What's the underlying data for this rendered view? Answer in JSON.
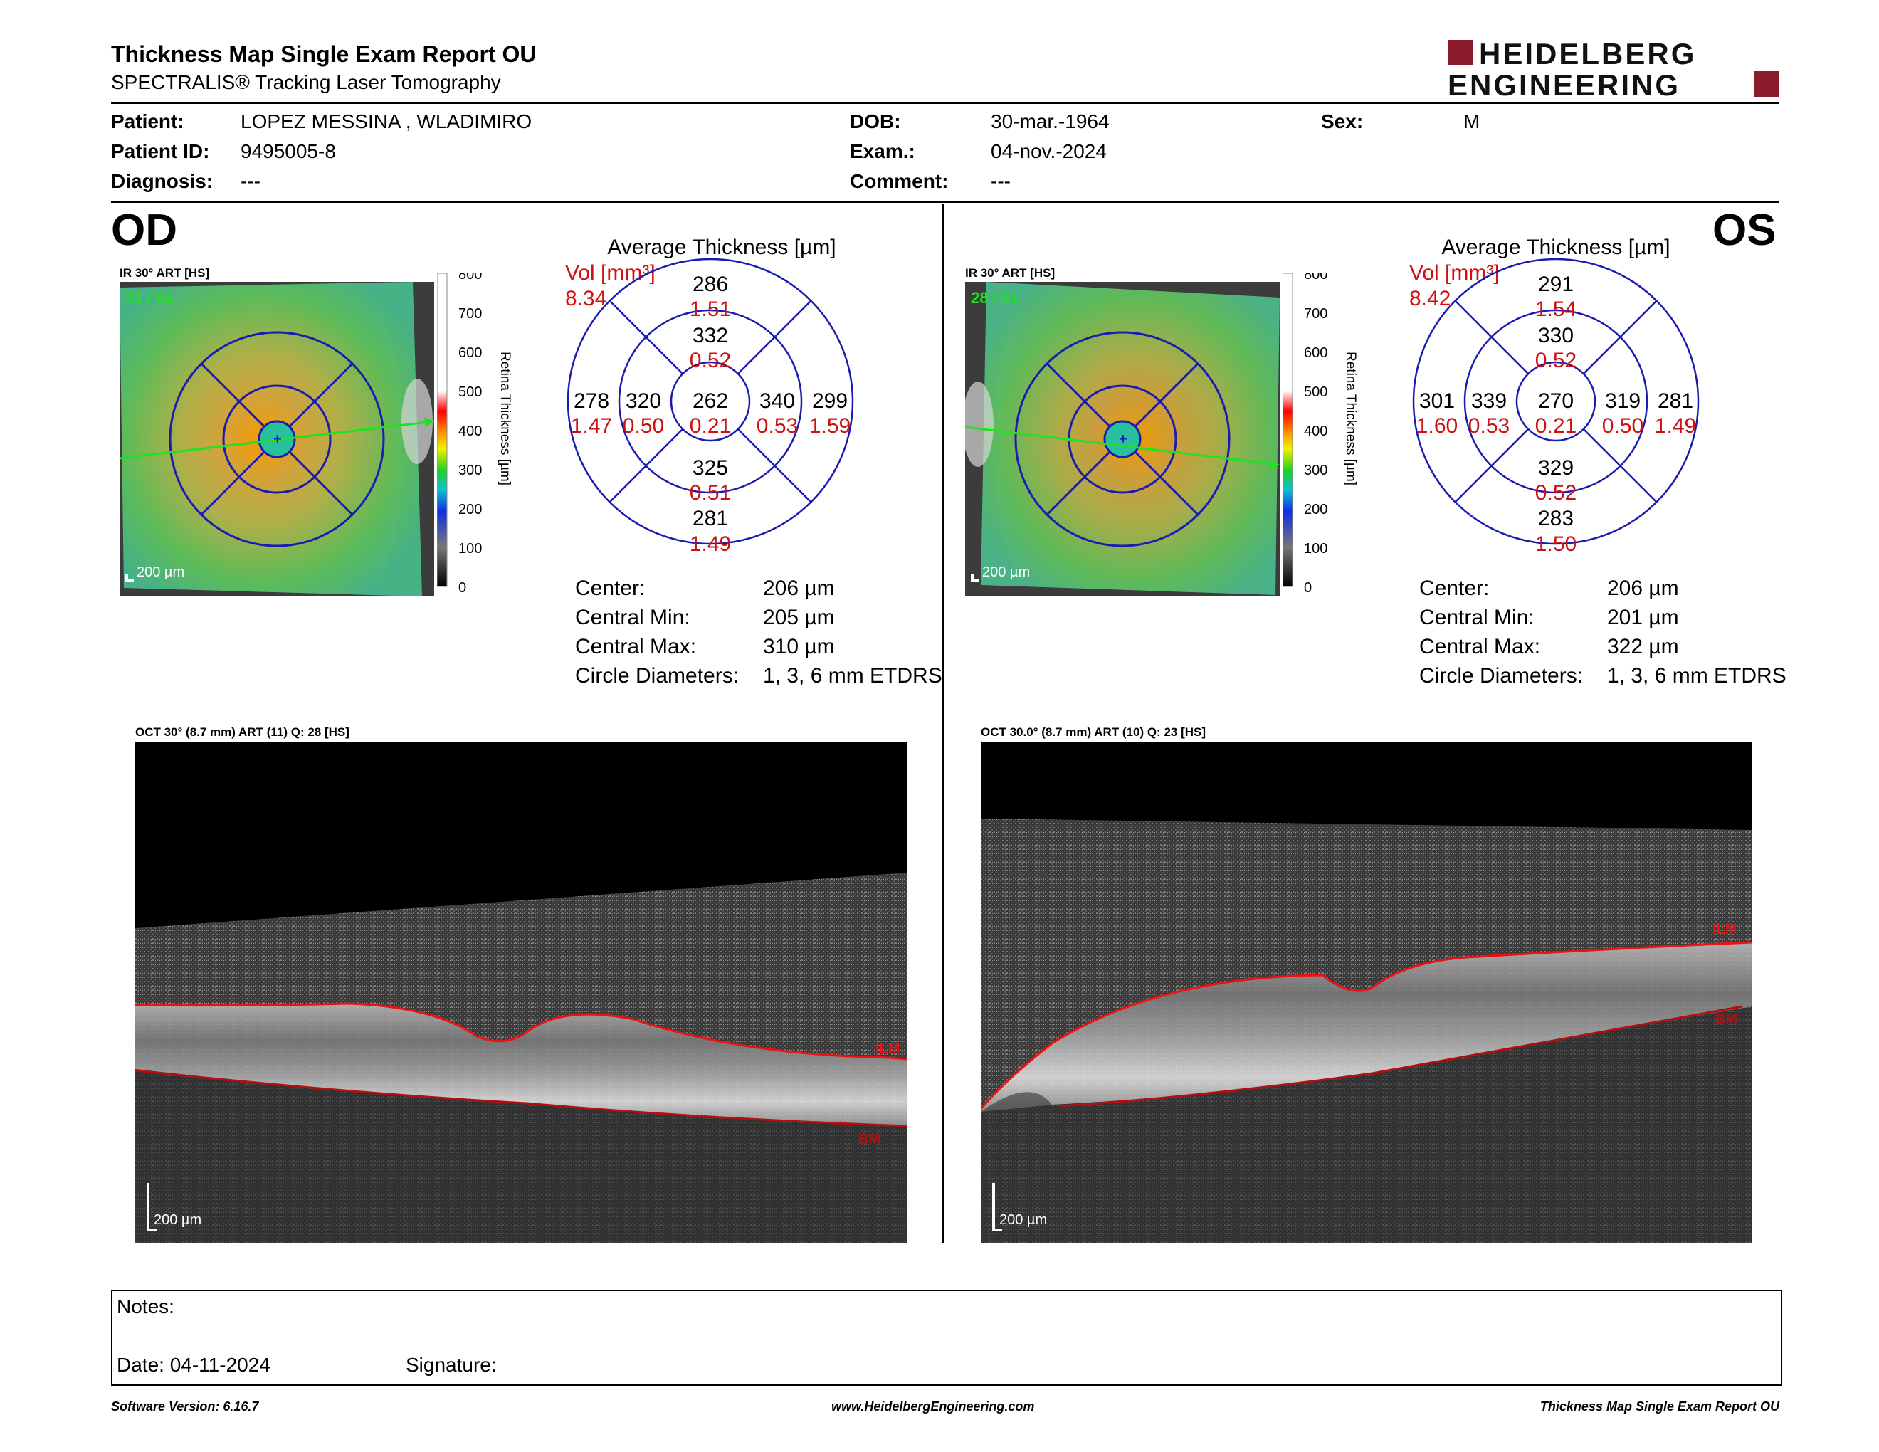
{
  "header": {
    "title": "Thickness Map Single Exam Report OU",
    "subtitle": "SPECTRALIS® Tracking Laser Tomography",
    "logo_line1": "HEIDELBERG",
    "logo_line2": "ENGINEERING",
    "logo_color": "#8b1a2b"
  },
  "patient": {
    "patient_label": "Patient:",
    "patient_value": "LOPEZ MESSINA , WLADIMIRO",
    "id_label": "Patient ID:",
    "id_value": "9495005-8",
    "diag_label": "Diagnosis:",
    "diag_value": "---",
    "dob_label": "DOB:",
    "dob_value": "30-mar.-1964",
    "exam_label": "Exam.:",
    "exam_value": "04-nov.-2024",
    "comment_label": "Comment:",
    "comment_value": "---",
    "sex_label": "Sex:",
    "sex_value": "M"
  },
  "od": {
    "eye": "OD",
    "ir_label": "IR 30° ART [HS]",
    "frames": "31 / 61",
    "scale_bar": "200 µm",
    "colorbar_ticks": [
      "800",
      "700",
      "600",
      "500",
      "400",
      "300",
      "200",
      "100",
      "0"
    ],
    "colorbar_title": "Retina Thickness [µm]",
    "avg_title": "Average Thickness [µm]",
    "vol_label": "Vol [mm³]",
    "vol_value": "8.34",
    "sectors": {
      "center": {
        "t": "262",
        "v": "0.21"
      },
      "inner_sup": {
        "t": "332",
        "v": "0.52"
      },
      "inner_inf": {
        "t": "325",
        "v": "0.51"
      },
      "inner_left": {
        "t": "320",
        "v": "0.50"
      },
      "inner_right": {
        "t": "340",
        "v": "0.53"
      },
      "outer_sup": {
        "t": "286",
        "v": "1.51"
      },
      "outer_inf": {
        "t": "281",
        "v": "1.49"
      },
      "outer_left": {
        "t": "278",
        "v": "1.47"
      },
      "outer_right": {
        "t": "299",
        "v": "1.59"
      }
    },
    "center_label": "Center:",
    "center_value": "206 µm",
    "cmin_label": "Central Min:",
    "cmin_value": "205 µm",
    "cmax_label": "Central Max:",
    "cmax_value": "310 µm",
    "diam_label": "Circle Diameters:",
    "diam_value": "1, 3, 6 mm ETDRS",
    "oct_label": "OCT 30° (8.7 mm) ART (11) Q: 28 [HS]",
    "oct_scale": "200 µm",
    "ilm": "ILM",
    "bm": "BM"
  },
  "os": {
    "eye": "OS",
    "ir_label": "IR 30° ART [HS]",
    "frames": "28 / 61",
    "scale_bar": "200 µm",
    "colorbar_ticks": [
      "800",
      "700",
      "600",
      "500",
      "400",
      "300",
      "200",
      "100",
      "0"
    ],
    "colorbar_title": "Retina Thickness [µm]",
    "avg_title": "Average Thickness [µm]",
    "vol_label": "Vol [mm³]",
    "vol_value": "8.42",
    "sectors": {
      "center": {
        "t": "270",
        "v": "0.21"
      },
      "inner_sup": {
        "t": "330",
        "v": "0.52"
      },
      "inner_inf": {
        "t": "329",
        "v": "0.52"
      },
      "inner_left": {
        "t": "339",
        "v": "0.53"
      },
      "inner_right": {
        "t": "319",
        "v": "0.50"
      },
      "outer_sup": {
        "t": "291",
        "v": "1.54"
      },
      "outer_inf": {
        "t": "283",
        "v": "1.50"
      },
      "outer_left": {
        "t": "301",
        "v": "1.60"
      },
      "outer_right": {
        "t": "281",
        "v": "1.49"
      }
    },
    "center_label": "Center:",
    "center_value": "206 µm",
    "cmin_label": "Central Min:",
    "cmin_value": "201 µm",
    "cmax_label": "Central Max:",
    "cmax_value": "322 µm",
    "diam_label": "Circle Diameters:",
    "diam_value": "1, 3, 6 mm ETDRS",
    "oct_label": "OCT 30.0° (8.7 mm) ART (10) Q: 23 [HS]",
    "oct_scale": "200 µm",
    "ilm": "ILM",
    "bm": "BM"
  },
  "notes": {
    "notes_label": "Notes:",
    "date_label": "Date: 04-11-2024",
    "signature_label": "Signature:"
  },
  "footer": {
    "version": "Software Version: 6.16.7",
    "url": "www.HeidelbergEngineering.com",
    "report": "Thickness Map Single Exam Report OU"
  },
  "colors": {
    "etdrs": "#1b1bb0",
    "vol": "#d01010",
    "ilm": "#e11",
    "bm": "#b01010",
    "scan": "#22e022"
  }
}
